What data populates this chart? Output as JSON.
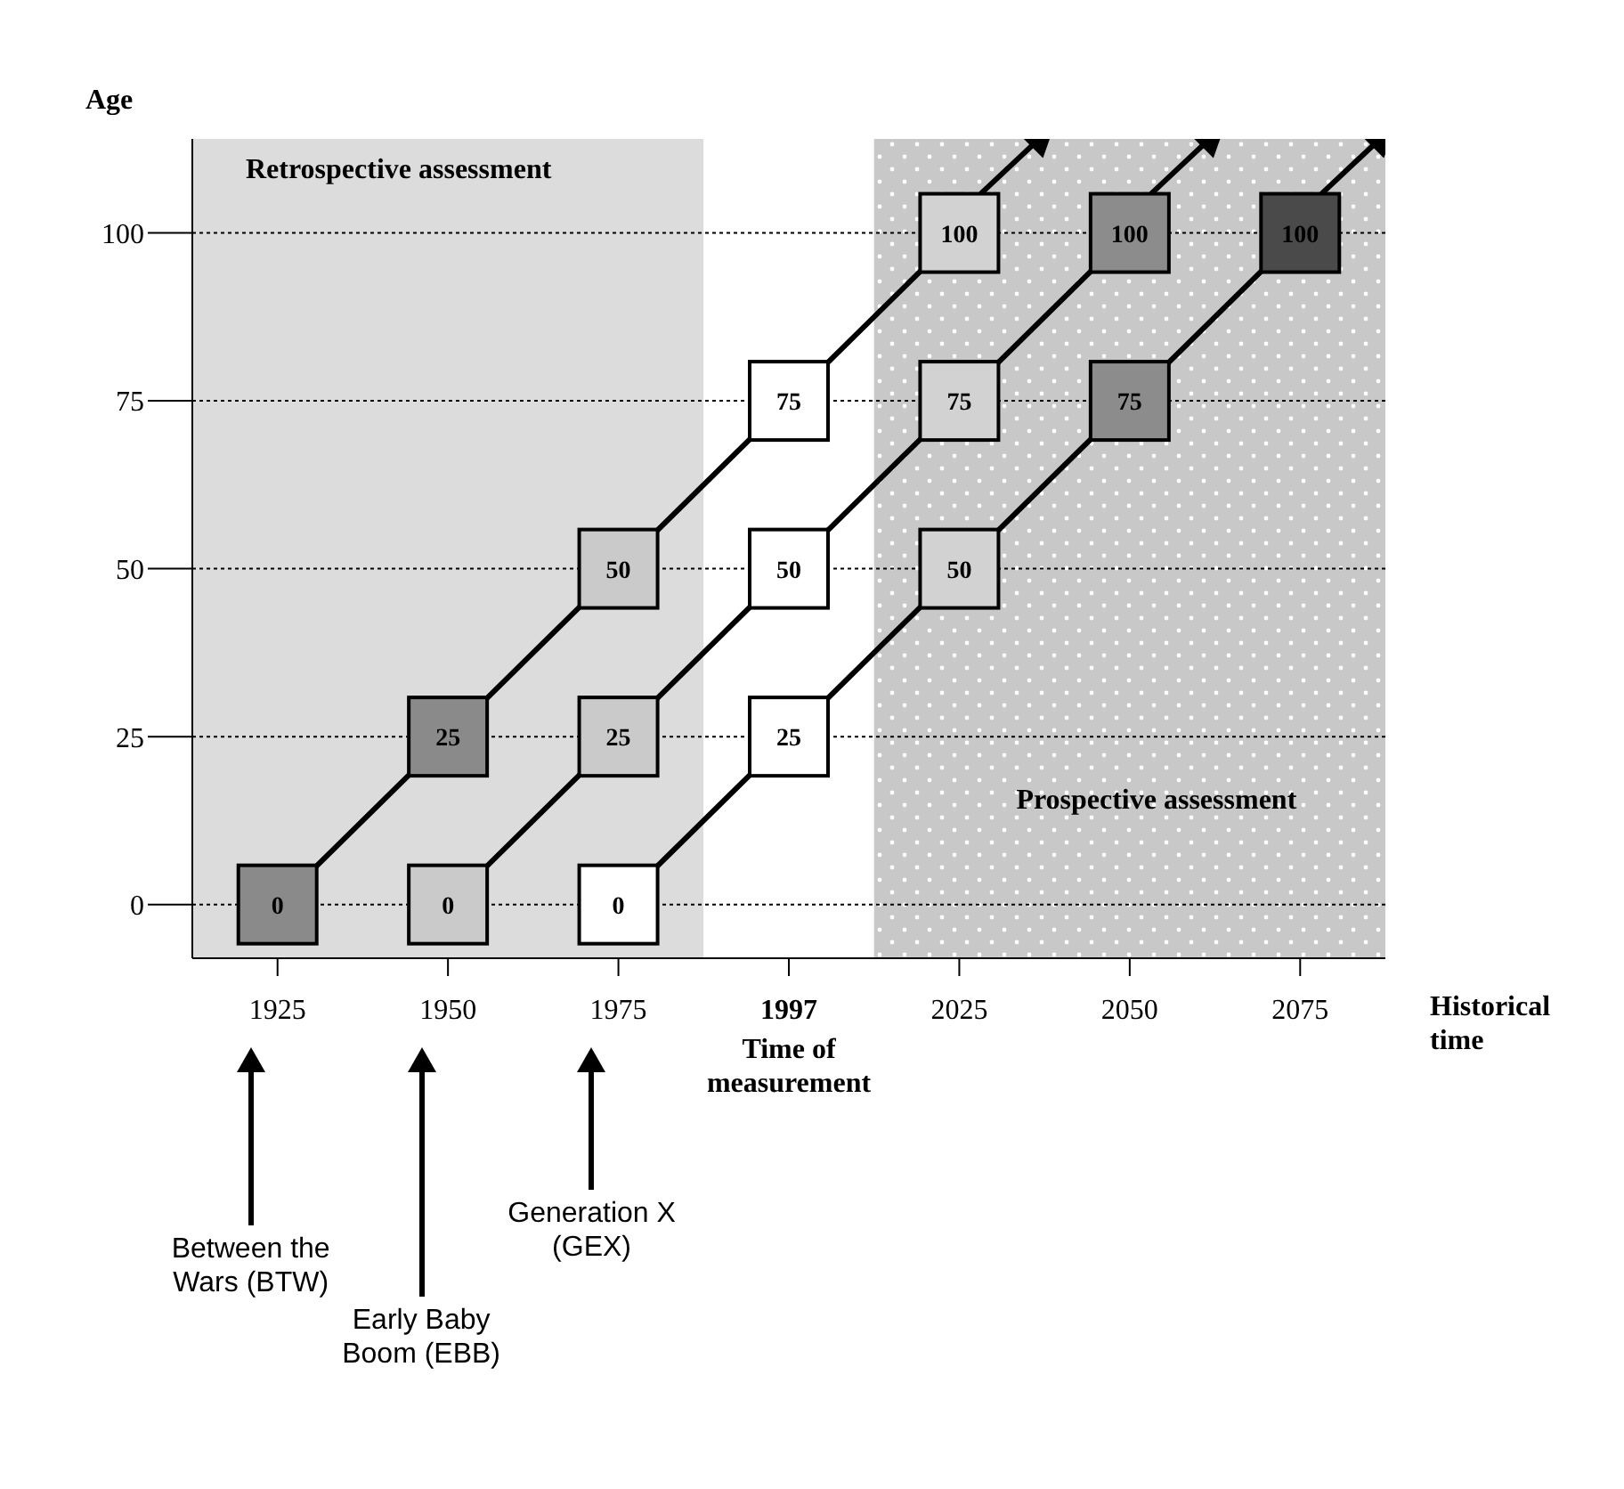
{
  "chart_data": {
    "type": "line",
    "xlabel": "Historical time",
    "ylabel": "Age",
    "categories": [
      "1925",
      "1950",
      "1975",
      "1997",
      "2025",
      "2050",
      "2075"
    ],
    "series": [
      {
        "color": "#000000",
        "colors": [
          "#8a8a8a",
          "#8a8a8a",
          "#cacaca",
          "#ffffff",
          "#d2d2d2",
          null,
          null
        ],
        "values": [
          0,
          25,
          50,
          75,
          100,
          null,
          null
        ]
      },
      {
        "color": "#000000",
        "colors": [
          null,
          "#cacaca",
          "#cacaca",
          "#ffffff",
          "#d2d2d2",
          "#8c8c8c",
          null
        ],
        "values": [
          null,
          0,
          25,
          50,
          75,
          100,
          null
        ]
      },
      {
        "color": "#000000",
        "colors": [
          null,
          null,
          "#ffffff",
          "#ffffff",
          "#d2d2d2",
          "#8c8c8c",
          "#4a4a4a"
        ],
        "values": [
          null,
          null,
          0,
          25,
          50,
          75,
          100
        ]
      }
    ],
    "ylim": [
      -8,
      114
    ],
    "yticks": [
      0,
      25,
      50,
      75,
      100
    ],
    "bands": [
      {
        "axis": "x",
        "from": "1925",
        "to": "1975",
        "label": "Retrospective assessment",
        "color": "#dcdcdc"
      },
      {
        "axis": "x",
        "from": "1997",
        "to": "1997",
        "color": "#ffffff"
      },
      {
        "axis": "x",
        "from": "2025",
        "to": "2075",
        "label": "Prospective assessment",
        "color": "#c8c8c8"
      }
    ],
    "annotations": [
      "Between the Wars (BTW)",
      "Early Baby Boom (EBB)",
      "Generation X (GEX)",
      "Time of measurement"
    ],
    "grid": "y",
    "marker": "square",
    "line_style": "solid",
    "data_labels": true,
    "legend": false
  }
}
